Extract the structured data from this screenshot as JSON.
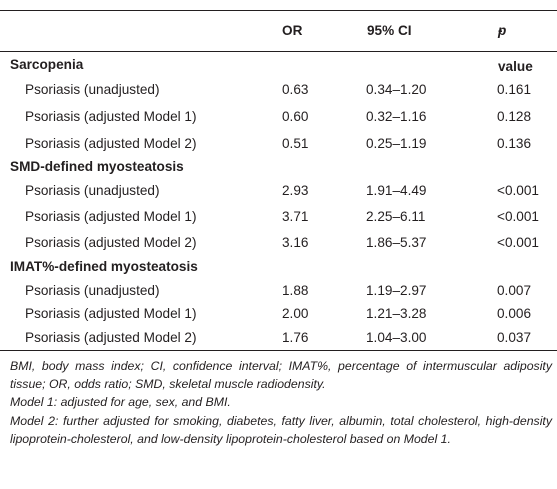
{
  "table": {
    "header": {
      "col_label": "",
      "col_or": "OR",
      "col_ci": "95% CI",
      "col_p_italic": "p",
      "col_p_rest": "-value"
    },
    "sections": [
      {
        "title": "Sarcopenia",
        "rows": [
          {
            "label": "Psoriasis (unadjusted)",
            "or": "0.63",
            "ci": "0.34–1.20",
            "p": "0.161"
          },
          {
            "label": "Psoriasis (adjusted Model 1)",
            "or": "0.60",
            "ci": "0.32–1.16",
            "p": "0.128"
          },
          {
            "label": "Psoriasis (adjusted Model 2)",
            "or": "0.51",
            "ci": "0.25–1.19",
            "p": "0.136"
          }
        ]
      },
      {
        "title": "SMD-defined myosteatosis",
        "rows": [
          {
            "label": "Psoriasis (unadjusted)",
            "or": "2.93",
            "ci": "1.91–4.49",
            "p": "<0.001"
          },
          {
            "label": "Psoriasis (adjusted Model 1)",
            "or": "3.71",
            "ci": "2.25–6.11",
            "p": "<0.001"
          },
          {
            "label": "Psoriasis (adjusted Model 2)",
            "or": "3.16",
            "ci": "1.86–5.37",
            "p": "<0.001"
          }
        ]
      },
      {
        "title": "IMAT%-defined myosteatosis",
        "rows": [
          {
            "label": "Psoriasis (unadjusted)",
            "or": "1.88",
            "ci": "1.19–2.97",
            "p": "0.007"
          },
          {
            "label": "Psoriasis (adjusted Model 1)",
            "or": "2.00",
            "ci": "1.21–3.28",
            "p": "0.006"
          },
          {
            "label": "Psoriasis (adjusted Model 2)",
            "or": "1.76",
            "ci": "1.04–3.00",
            "p": "0.037"
          }
        ]
      }
    ]
  },
  "footnotes": {
    "abbrev": "BMI, body mass index; CI, confidence interval; IMAT%, percentage of intermuscular adiposity tissue; OR, odds ratio; SMD, skeletal muscle radiodensity.",
    "model1": "Model 1: adjusted for age, sex, and BMI.",
    "model2": "Model 2: further adjusted for smoking, diabetes, fatty liver, albumin, total cholesterol, high-density lipoprotein-cholesterol, and low-density lipoprotein-cholesterol based on Model 1."
  }
}
